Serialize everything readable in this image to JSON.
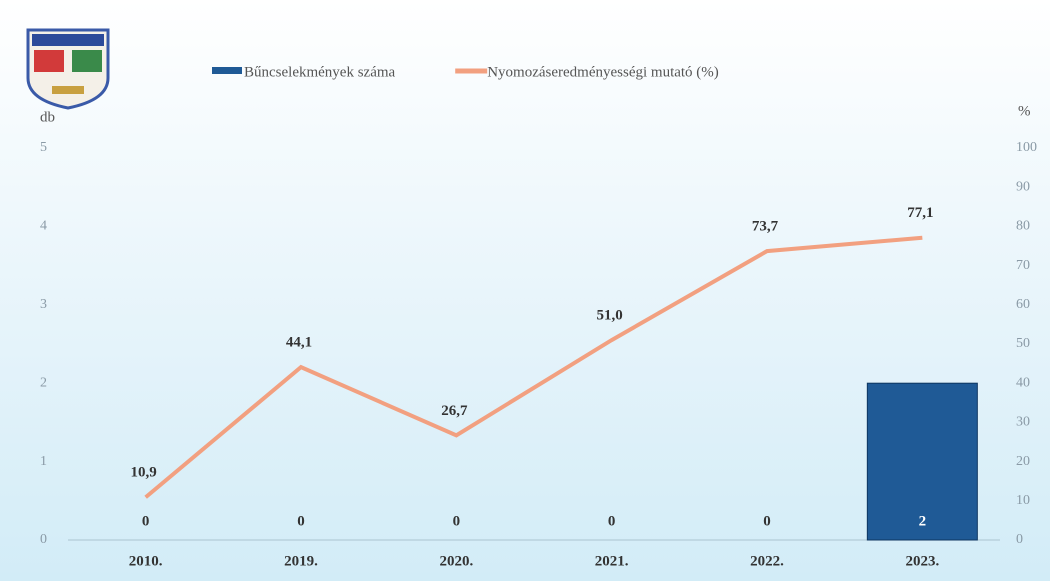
{
  "chart_data": {
    "type": "bar",
    "categories": [
      "2010.",
      "2019.",
      "2020.",
      "2021.",
      "2022.",
      "2023."
    ],
    "y_label": "db",
    "y2_label": "%",
    "ylim": [
      0,
      5
    ],
    "yticks": [
      0,
      1,
      2,
      3,
      4,
      5
    ],
    "y2lim": [
      0,
      100
    ],
    "y2ticks": [
      0,
      10,
      20,
      30,
      40,
      50,
      60,
      70,
      80,
      90,
      100
    ],
    "legend": "top",
    "series": [
      {
        "name": "Bűncselekmények száma",
        "type": "bar",
        "color": "#1f5a96",
        "values": [
          0,
          0,
          0,
          0,
          0,
          2
        ]
      },
      {
        "name": "Nyomozáseredményességi mutató (%)",
        "type": "line",
        "axis": "y2",
        "color": "#f2a080",
        "values": [
          10.9,
          44.1,
          26.7,
          51.0,
          73.7,
          77.1
        ],
        "value_labels": [
          "10,9",
          "44,1",
          "26,7",
          "51,0",
          "73,7",
          "77,1"
        ]
      }
    ]
  }
}
